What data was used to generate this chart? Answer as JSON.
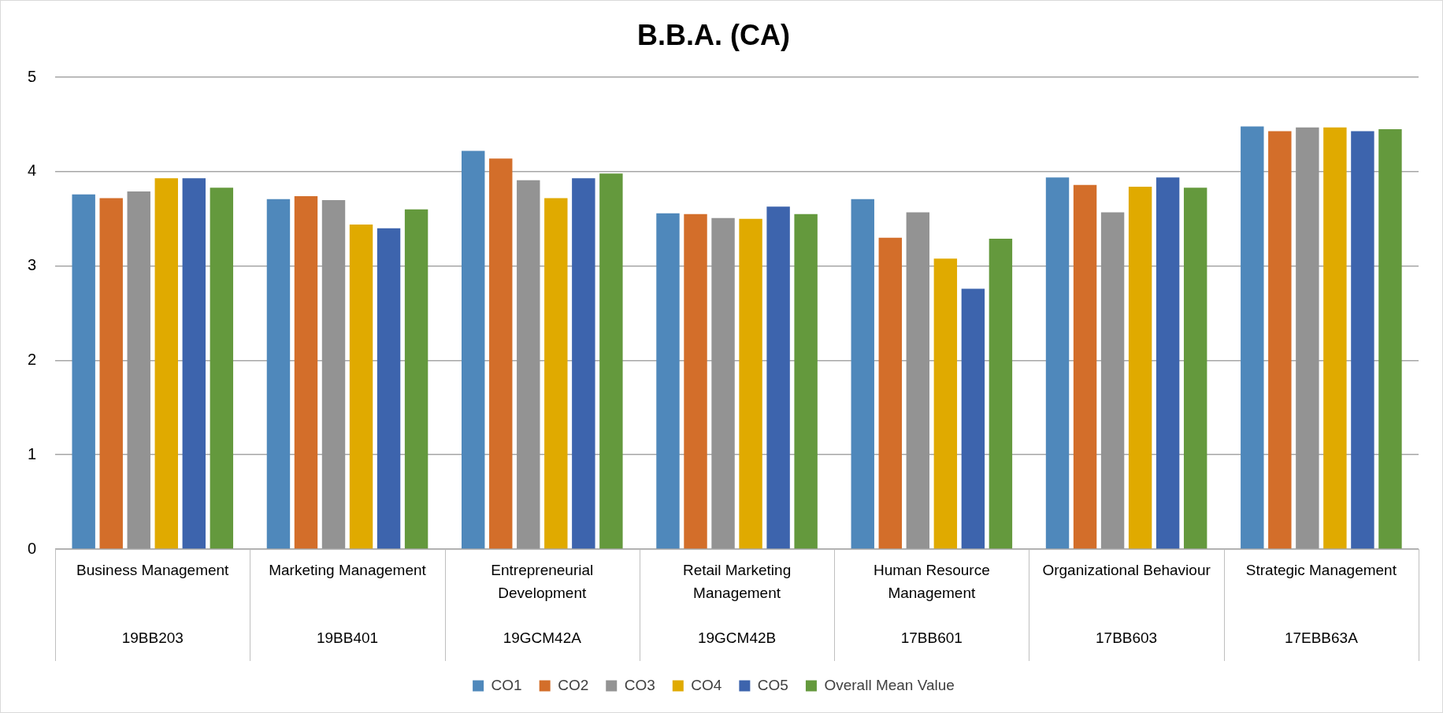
{
  "chart_data": {
    "type": "bar",
    "title": "B.B.A. (CA)",
    "categories": [
      "Business Management\n19BB203",
      "Marketing Management\n19BB401",
      "Entrepreneurial Development\n19GCM42A",
      "Retail Marketing Management\n19GCM42B",
      "Human Resource Management\n17BB601",
      "Organizational Behaviour\n17BB603",
      "Strategic Management\n17EBB63A"
    ],
    "series": [
      {
        "name": "CO1",
        "color": "#4f88bb",
        "values": [
          3.76,
          3.71,
          4.22,
          3.56,
          3.71,
          3.94,
          4.48
        ]
      },
      {
        "name": "CO2",
        "color": "#d36e2a",
        "values": [
          3.72,
          3.74,
          4.14,
          3.55,
          3.3,
          3.86,
          4.43
        ]
      },
      {
        "name": "CO3",
        "color": "#939393",
        "values": [
          3.79,
          3.7,
          3.91,
          3.51,
          3.57,
          3.57,
          4.47
        ]
      },
      {
        "name": "CO4",
        "color": "#e0aa00",
        "values": [
          3.93,
          3.44,
          3.72,
          3.5,
          3.08,
          3.84,
          4.47
        ]
      },
      {
        "name": "CO5",
        "color": "#3d64ad",
        "values": [
          3.93,
          3.4,
          3.93,
          3.63,
          2.76,
          3.94,
          4.43
        ]
      },
      {
        "name": "Overall Mean Value",
        "color": "#64993d",
        "values": [
          3.83,
          3.6,
          3.98,
          3.55,
          3.29,
          3.83,
          4.45
        ]
      }
    ],
    "ylim": [
      0,
      5
    ],
    "yticks": [
      0,
      1,
      2,
      3,
      4,
      5
    ],
    "grid": "y",
    "legend": "bottom"
  }
}
